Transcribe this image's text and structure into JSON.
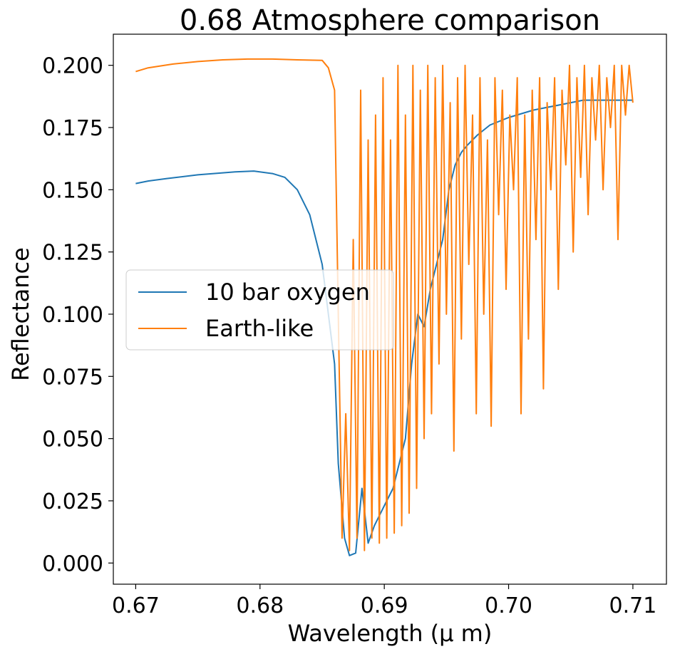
{
  "chart_data": {
    "type": "line",
    "title": "0.68 Atmosphere comparison",
    "xlabel": "Wavelength (μ m)",
    "ylabel": "Reflectance",
    "xlim": [
      0.6682,
      0.7127
    ],
    "ylim": [
      -0.0085,
      0.2125
    ],
    "xticks": [
      0.67,
      0.68,
      0.69,
      0.7,
      0.71
    ],
    "xtick_labels": [
      "0.67",
      "0.68",
      "0.69",
      "0.70",
      "0.71"
    ],
    "yticks": [
      0.0,
      0.025,
      0.05,
      0.075,
      0.1,
      0.125,
      0.15,
      0.175,
      0.2
    ],
    "ytick_labels": [
      "0.000",
      "0.025",
      "0.050",
      "0.075",
      "0.100",
      "0.125",
      "0.150",
      "0.175",
      "0.200"
    ],
    "grid": false,
    "legend": {
      "placement": "center-left"
    },
    "series": [
      {
        "name": "10 bar oxygen",
        "color": "#1f77b4",
        "x": [
          0.67,
          0.671,
          0.6725,
          0.675,
          0.678,
          0.6795,
          0.681,
          0.682,
          0.683,
          0.684,
          0.685,
          0.686,
          0.6863,
          0.6868,
          0.6872,
          0.6877,
          0.6882,
          0.6887,
          0.6892,
          0.6897,
          0.6902,
          0.6907,
          0.6912,
          0.6917,
          0.6922,
          0.6927,
          0.6932,
          0.6937,
          0.6942,
          0.6947,
          0.6952,
          0.6957,
          0.6962,
          0.6967,
          0.6975,
          0.6985,
          0.7,
          0.702,
          0.704,
          0.706,
          0.708,
          0.71
        ],
        "y": [
          0.1525,
          0.1535,
          0.1545,
          0.156,
          0.1572,
          0.1575,
          0.1565,
          0.155,
          0.15,
          0.14,
          0.12,
          0.08,
          0.04,
          0.01,
          0.003,
          0.004,
          0.03,
          0.008,
          0.015,
          0.02,
          0.025,
          0.03,
          0.04,
          0.05,
          0.08,
          0.1,
          0.095,
          0.11,
          0.12,
          0.13,
          0.15,
          0.16,
          0.165,
          0.168,
          0.172,
          0.176,
          0.179,
          0.182,
          0.184,
          0.186,
          0.186,
          0.186
        ]
      },
      {
        "name": "Earth-like",
        "color": "#ff7f0e",
        "x": [
          0.67,
          0.671,
          0.673,
          0.675,
          0.677,
          0.679,
          0.681,
          0.683,
          0.685,
          0.6855,
          0.686,
          0.6863,
          0.6866,
          0.6869,
          0.6872,
          0.6875,
          0.6878,
          0.6881,
          0.6884,
          0.6887,
          0.689,
          0.6893,
          0.6896,
          0.6899,
          0.6902,
          0.6905,
          0.6908,
          0.6911,
          0.6914,
          0.6917,
          0.692,
          0.6923,
          0.6926,
          0.6929,
          0.6932,
          0.6935,
          0.6938,
          0.6941,
          0.6944,
          0.6947,
          0.695,
          0.6953,
          0.6956,
          0.6959,
          0.6962,
          0.6965,
          0.6968,
          0.6971,
          0.6974,
          0.6977,
          0.698,
          0.6983,
          0.6986,
          0.6989,
          0.6992,
          0.6995,
          0.6998,
          0.7001,
          0.7004,
          0.7007,
          0.701,
          0.7013,
          0.7016,
          0.7019,
          0.7022,
          0.7025,
          0.7028,
          0.7031,
          0.7034,
          0.7037,
          0.704,
          0.7043,
          0.7046,
          0.7049,
          0.7052,
          0.7055,
          0.7058,
          0.7061,
          0.7064,
          0.7067,
          0.707,
          0.7073,
          0.7076,
          0.7079,
          0.7082,
          0.7085,
          0.7088,
          0.7091,
          0.7094,
          0.7097,
          0.71
        ],
        "y": [
          0.1975,
          0.199,
          0.2005,
          0.2015,
          0.2022,
          0.2025,
          0.2025,
          0.2022,
          0.202,
          0.199,
          0.19,
          0.1,
          0.01,
          0.06,
          0.005,
          0.13,
          0.01,
          0.19,
          0.005,
          0.17,
          0.01,
          0.18,
          0.008,
          0.195,
          0.01,
          0.17,
          0.012,
          0.2,
          0.015,
          0.18,
          0.02,
          0.2,
          0.03,
          0.19,
          0.05,
          0.2,
          0.06,
          0.195,
          0.08,
          0.2,
          0.1,
          0.185,
          0.045,
          0.195,
          0.09,
          0.2,
          0.12,
          0.18,
          0.06,
          0.195,
          0.1,
          0.17,
          0.055,
          0.195,
          0.14,
          0.19,
          0.11,
          0.18,
          0.15,
          0.195,
          0.06,
          0.18,
          0.09,
          0.19,
          0.13,
          0.195,
          0.07,
          0.185,
          0.15,
          0.195,
          0.11,
          0.19,
          0.16,
          0.2,
          0.125,
          0.195,
          0.155,
          0.2,
          0.14,
          0.195,
          0.17,
          0.2,
          0.15,
          0.195,
          0.175,
          0.2,
          0.13,
          0.2,
          0.18,
          0.2,
          0.185
        ]
      }
    ]
  }
}
